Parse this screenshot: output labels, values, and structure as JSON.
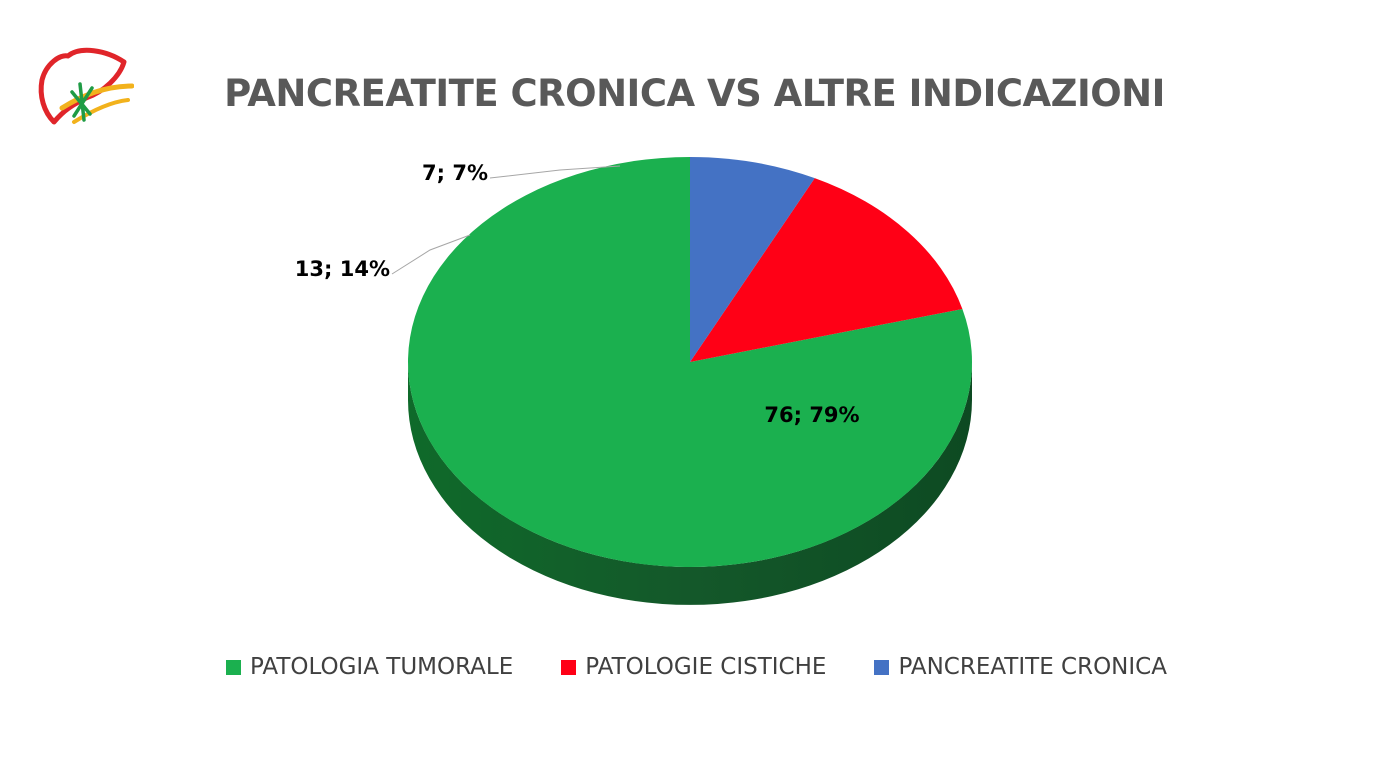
{
  "chart_data": {
    "type": "pie",
    "title": "PANCREATITE CRONICA VS ALTRE INDICAZIONI",
    "categories": [
      "PATOLOGIA TUMORALE",
      "PATOLOGIE CISTICHE",
      "PANCREATITE CRONICA"
    ],
    "values": [
      76,
      13,
      7
    ],
    "percentages": [
      79,
      14,
      7
    ],
    "data_labels": [
      "76; 79%",
      "13; 14%",
      "7; 7%"
    ],
    "colors": [
      "#1bb04f",
      "#ff0016",
      "#4472c4"
    ],
    "legend_position": "bottom",
    "style": "3d"
  },
  "logo": {
    "icon": "liver-logo-icon"
  }
}
